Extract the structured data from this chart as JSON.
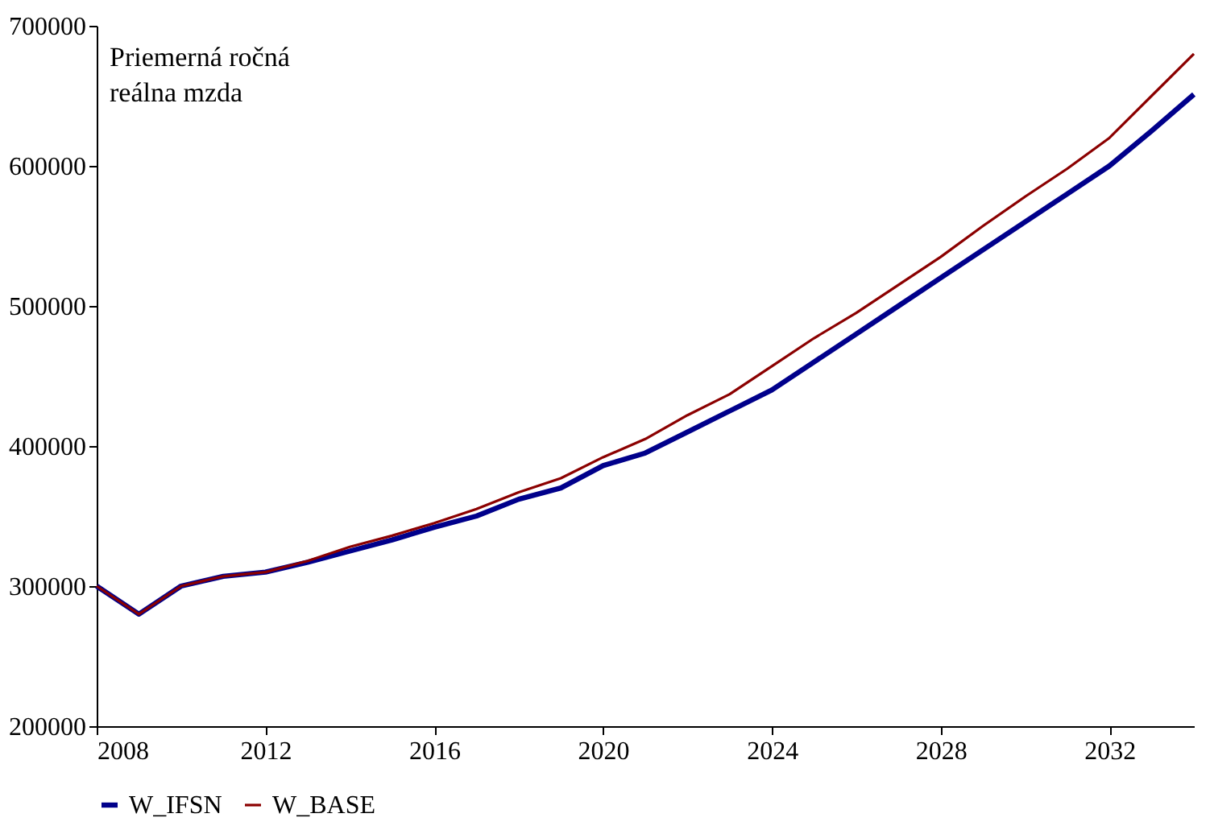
{
  "chart_data": {
    "type": "line",
    "x": [
      2008,
      2009,
      2010,
      2011,
      2012,
      2013,
      2014,
      2015,
      2016,
      2017,
      2018,
      2019,
      2020,
      2021,
      2022,
      2023,
      2024,
      2025,
      2026,
      2027,
      2028,
      2029,
      2030,
      2031,
      2032,
      2033,
      2034
    ],
    "series": [
      {
        "name": "W_IFSN",
        "color": "#00008b",
        "values": [
          300000,
          280000,
          300000,
          307000,
          310000,
          317000,
          325000,
          333000,
          342000,
          350000,
          362000,
          370000,
          386000,
          395000,
          410000,
          425000,
          440000,
          460000,
          480000,
          500000,
          520000,
          540000,
          560000,
          580000,
          600000,
          625000,
          651000
        ]
      },
      {
        "name": "W_BASE",
        "color": "#8b0000",
        "values": [
          300000,
          280000,
          300000,
          307000,
          310000,
          318000,
          328000,
          336000,
          345000,
          355000,
          367000,
          377000,
          392000,
          405000,
          422000,
          437000,
          457000,
          477000,
          495000,
          515000,
          535000,
          557000,
          578000,
          598000,
          620000,
          650000,
          680000
        ]
      }
    ],
    "xlim": [
      2008,
      2034
    ],
    "xticks": [
      2008,
      2012,
      2016,
      2020,
      2024,
      2028,
      2032
    ],
    "ylim": [
      200000,
      700000
    ],
    "yticks": [
      200000,
      300000,
      400000,
      500000,
      600000,
      700000
    ],
    "annotations": [
      "Priemerná ročná\nreálna mzda"
    ],
    "legend": "bottom",
    "grid": false,
    "line_style": "solid",
    "marker": "none"
  }
}
